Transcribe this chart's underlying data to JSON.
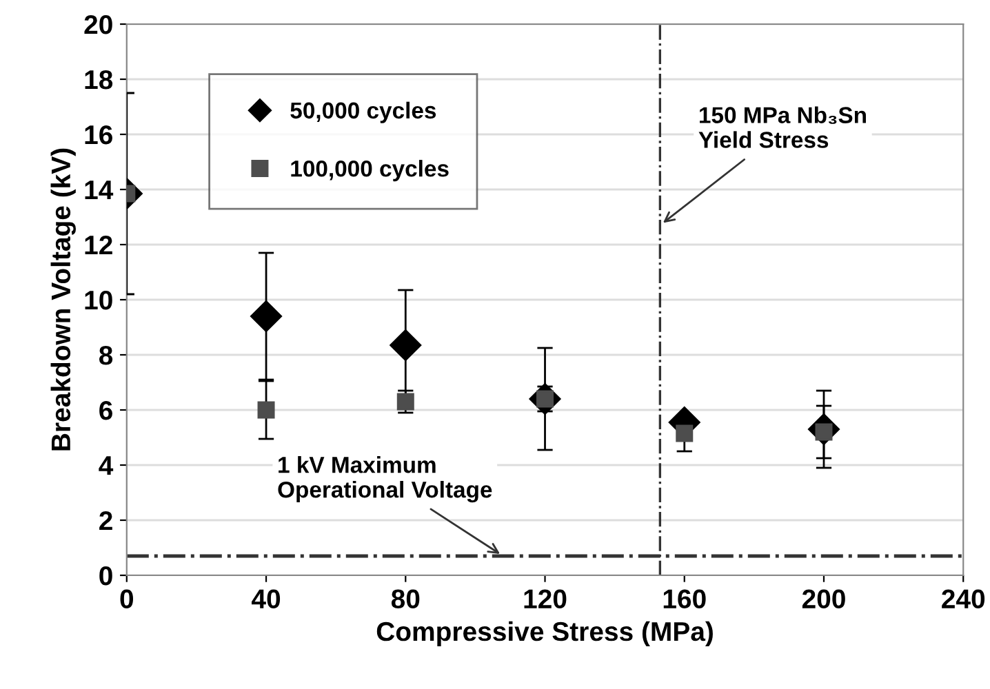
{
  "chart_data": {
    "type": "scatter",
    "xlabel": "Compressive Stress (MPa)",
    "ylabel": "Breakdown Voltage (kV)",
    "x": [
      0,
      40,
      80,
      120,
      160,
      200
    ],
    "series": [
      {
        "name": "50,000 cycles",
        "color": "#000000",
        "marker": "diamond",
        "values": [
          13.85,
          9.4,
          8.35,
          6.4,
          5.55,
          5.3
        ],
        "errors": [
          3.65,
          2.3,
          2.0,
          1.85,
          null,
          1.4
        ]
      },
      {
        "name": "100,000 cycles",
        "color": "#4d4d4d",
        "marker": "square",
        "values": [
          13.85,
          6.0,
          6.3,
          6.4,
          5.15,
          5.2
        ],
        "errors": [
          null,
          1.05,
          0.4,
          0.45,
          0.65,
          0.95
        ]
      }
    ],
    "xlim": [
      0,
      240
    ],
    "xticks": [
      0,
      40,
      80,
      120,
      160,
      200,
      240
    ],
    "ylim": [
      0,
      20
    ],
    "yticks": [
      0,
      2,
      4,
      6,
      8,
      10,
      12,
      14,
      16,
      18,
      20
    ],
    "grid": "y",
    "legend": "top left",
    "ref_lines": [
      {
        "axis": "x",
        "value": 153,
        "color": "#333333",
        "line_style": "dashdot"
      },
      {
        "axis": "y",
        "value": 0.7,
        "color": "#333333",
        "line_style": "dashdot"
      }
    ],
    "annotations": [
      {
        "text": "150 MPa Nb₃Sn\nYield Stress",
        "x": 153,
        "y": 12.7
      },
      {
        "text": "1 kV Maximum\nOperational Voltage",
        "x": 108,
        "y": 0.7
      }
    ]
  }
}
